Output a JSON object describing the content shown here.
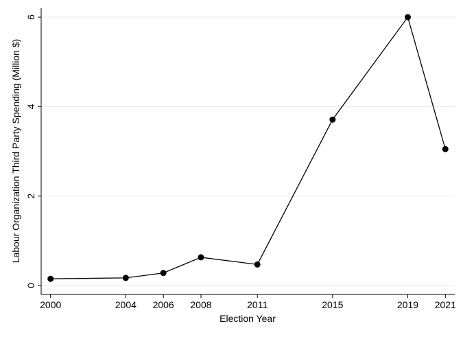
{
  "chart_data": {
    "type": "line",
    "x_label": "Election Year",
    "y_label": "Labour Organization Third Party Spending (Million $)",
    "x": [
      2000,
      2004,
      2006,
      2008,
      2011,
      2015,
      2019,
      2021
    ],
    "series": [
      {
        "name": "Labour Organization Third Party Spending",
        "color": "#000000",
        "values": [
          0.15,
          0.17,
          0.28,
          0.63,
          0.47,
          3.71,
          6,
          3.05
        ]
      }
    ],
    "xlim": [
      1999.5,
      2021.5
    ],
    "xticks": [
      2000,
      2004,
      2006,
      2008,
      2011,
      2015,
      2019,
      2021
    ],
    "ylim": [
      -0.2,
      6.2
    ],
    "yticks": [
      0,
      2,
      4,
      6
    ],
    "grid": true
  }
}
